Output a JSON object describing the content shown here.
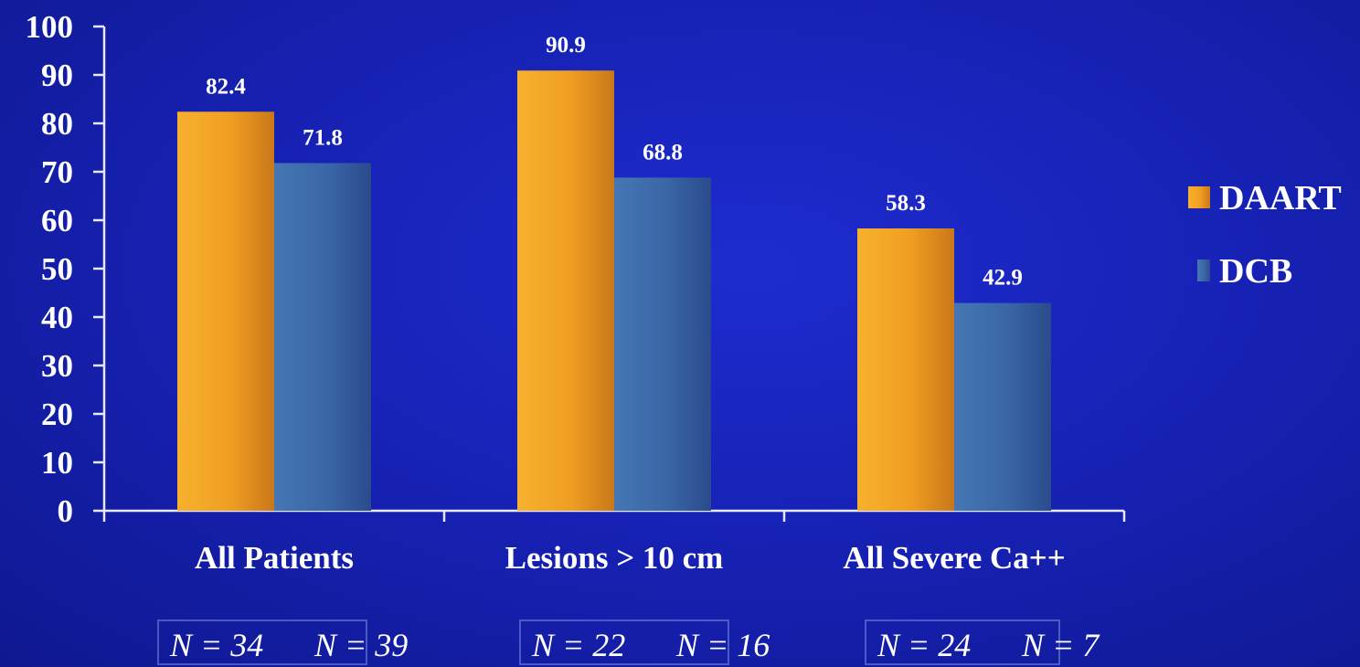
{
  "chart_data": {
    "type": "bar",
    "categories": [
      "All Patients",
      "Lesions > 10 cm",
      "All Severe Ca++"
    ],
    "series": [
      {
        "name": "DAART",
        "values": [
          82.4,
          90.9,
          58.3
        ],
        "color": "#f0a024"
      },
      {
        "name": "DCB",
        "values": [
          71.8,
          68.8,
          42.9
        ],
        "color": "#3a67a9"
      }
    ],
    "data_labels": [
      [
        "82.4",
        "90.9",
        "58.3"
      ],
      [
        "71.8",
        "68.8",
        "42.9"
      ]
    ],
    "y_ticks": [
      0,
      10,
      20,
      30,
      40,
      50,
      60,
      70,
      80,
      90,
      100
    ],
    "ylim": [
      0,
      100
    ],
    "title": "",
    "xlabel": "",
    "ylabel": "",
    "grid": false,
    "legend_placement": "right",
    "sample_sizes": [
      {
        "daart": "N = 34",
        "dcb": "N = 39"
      },
      {
        "daart": "N = 22",
        "dcb": "N = 16"
      },
      {
        "daart": "N = 24",
        "dcb": "N = 7"
      }
    ]
  }
}
